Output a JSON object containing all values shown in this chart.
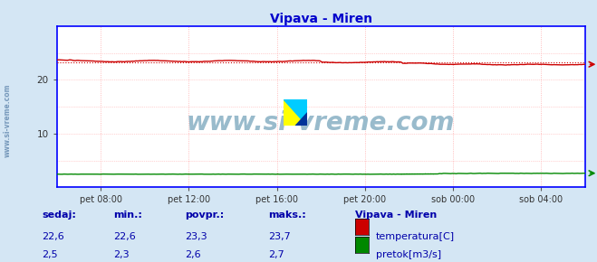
{
  "title": "Vipava - Miren",
  "title_color": "#0000cc",
  "bg_color": "#d4e6f4",
  "plot_bg_color": "#ffffff",
  "grid_color_v": "#ffaaaa",
  "grid_color_h": "#ffaaaa",
  "border_color": "#0000ff",
  "x_tick_labels": [
    "pet 08:00",
    "pet 12:00",
    "pet 16:00",
    "pet 20:00",
    "sob 00:00",
    "sob 04:00"
  ],
  "x_tick_positions": [
    0.083,
    0.25,
    0.417,
    0.583,
    0.75,
    0.917
  ],
  "ylim_min": 0,
  "ylim_max": 30,
  "yticks": [
    10,
    20
  ],
  "temp_color": "#cc0000",
  "flow_color": "#008800",
  "flow_dot_color": "#008800",
  "sidebar_text": "www.si-vreme.com",
  "sidebar_color": "#7799bb",
  "watermark_text": "www.si-vreme.com",
  "watermark_color": "#99bbcc",
  "watermark_fontsize": 20,
  "legend_title": "Vipava - Miren",
  "legend_title_color": "#0000aa",
  "legend_items": [
    {
      "label": "temperatura[C]",
      "color": "#cc0000"
    },
    {
      "label": "pretok[m3/s]",
      "color": "#008800"
    }
  ],
  "stats_headers": [
    "sedaj:",
    "min.:",
    "povpr.:",
    "maks.:"
  ],
  "stats_rows": [
    [
      "22,6",
      "22,6",
      "23,3",
      "23,7"
    ],
    [
      "2,5",
      "2,3",
      "2,6",
      "2,7"
    ]
  ],
  "stats_color": "#0000aa",
  "n_points": 288,
  "arrow_color": "#cc0000",
  "arrow_color_flow": "#008800"
}
